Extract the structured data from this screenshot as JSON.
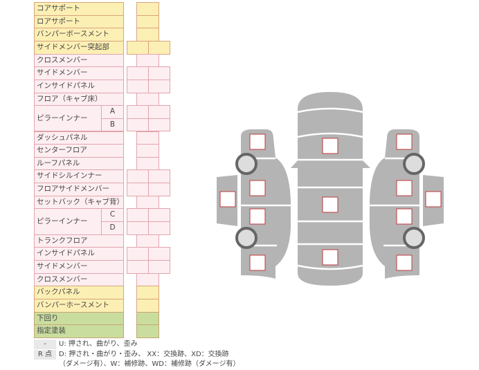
{
  "colors": {
    "yellow": {
      "fill": "#fcefb4",
      "border": "#d8a47c"
    },
    "pink": {
      "fill": "#fdeef1",
      "border": "#e2a4ac"
    },
    "green": {
      "fill": "#c9dd9e",
      "border": "#c9a472"
    },
    "body_gray": "#b4b4b4",
    "mark_box_border": "#c0393b"
  },
  "rows": [
    {
      "label": "コアサポート",
      "color": "yellow",
      "cells": 1
    },
    {
      "label": "ロアサポート",
      "color": "yellow",
      "cells": 1
    },
    {
      "label": "バンパーボースメント",
      "color": "yellow",
      "cells": 1
    },
    {
      "label": "サイドメンバー突起部",
      "color": "yellow",
      "cells": 2
    },
    {
      "label": "クロスメンバー",
      "color": "pink",
      "cells": 1
    },
    {
      "label": "サイドメンバー",
      "color": "pink",
      "cells": 2
    },
    {
      "label": "インサイドパネル",
      "color": "pink",
      "cells": 2
    },
    {
      "label": "フロア（キャブ床）",
      "color": "pink",
      "cells": 1
    },
    {
      "label": "ピラーインナー",
      "sub": "A",
      "span": 2,
      "color": "pink",
      "cells": 2
    },
    {
      "sub": "B",
      "color": "pink",
      "cells": 2
    },
    {
      "label": "ダッシュパネル",
      "color": "pink",
      "cells": 1
    },
    {
      "label": "センターフロア",
      "color": "pink",
      "cells": 1
    },
    {
      "label": "ルーフパネル",
      "color": "pink",
      "cells": 1
    },
    {
      "label": "サイドシルインナー",
      "color": "pink",
      "cells": 2
    },
    {
      "label": "フロアサイドメンバー",
      "color": "pink",
      "cells": 2
    },
    {
      "label": "セットバック（キャブ背）",
      "color": "pink",
      "cells": 1
    },
    {
      "label": "ピラーインナー",
      "sub": "C",
      "span": 2,
      "color": "pink",
      "cells": 2
    },
    {
      "sub": "D",
      "color": "pink",
      "cells": 2
    },
    {
      "label": "トランクフロア",
      "color": "pink",
      "cells": 1
    },
    {
      "label": "インサイドパネル",
      "color": "pink",
      "cells": 2
    },
    {
      "label": "サイドメンバー",
      "color": "pink",
      "cells": 2
    },
    {
      "label": "クロスメンバー",
      "color": "pink",
      "cells": 1
    },
    {
      "label": "バックパネル",
      "color": "yellow",
      "cells": 1
    },
    {
      "label": "バンパーホースメント",
      "color": "yellow",
      "cells": 1
    },
    {
      "label": "下回り",
      "color": "green",
      "cells": 1
    },
    {
      "label": "指定塗装",
      "color": "green",
      "cells": 1
    }
  ],
  "legend": {
    "dash_key": "-",
    "dash_text": "U: 押され、曲がり、歪み",
    "r_key": "R 点",
    "r_text_line1": "D: 押され・曲がり・歪み、 XX：交換跡、XD：交換跡",
    "r_text_line2": "（ダメージ有）、W：補修跡、WD：補修跡（ダメージ有）"
  }
}
